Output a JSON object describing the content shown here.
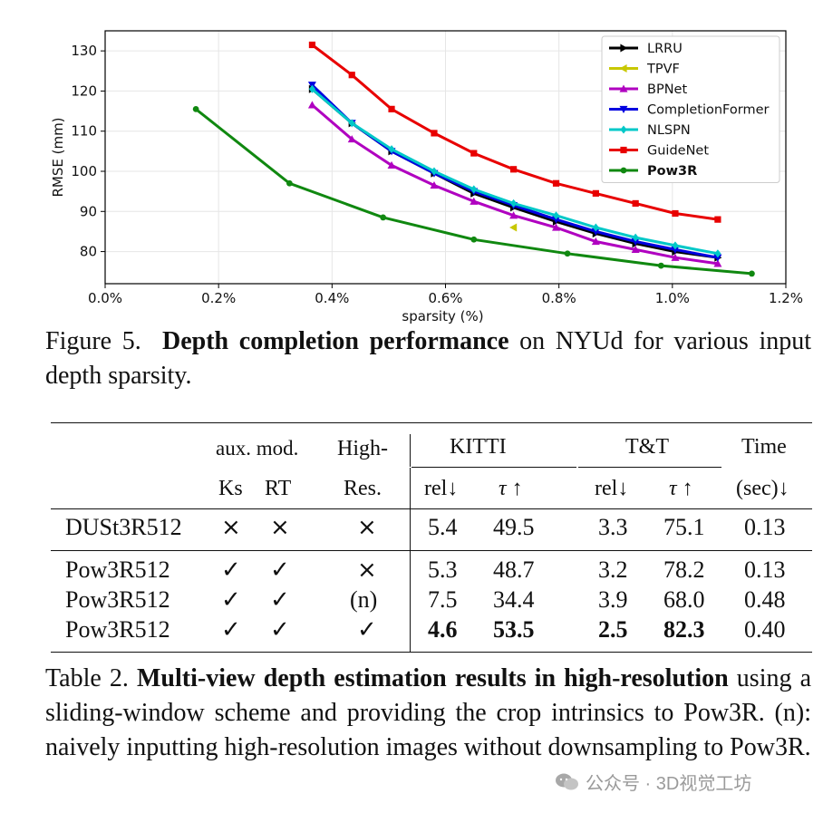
{
  "figure": {
    "caption_prefix": "Figure 5.",
    "caption_bold": "Depth completion performance",
    "caption_rest": " on NYUd for various input depth sparsity."
  },
  "chart_data": {
    "type": "line",
    "xlabel": "sparsity (%)",
    "ylabel": "RMSE (mm)",
    "xlim": [
      0.0,
      1.2
    ],
    "ylim": [
      72,
      135
    ],
    "xticks": [
      0.0,
      0.2,
      0.4,
      0.6,
      0.8,
      1.0,
      1.2
    ],
    "xtick_labels": [
      "0.0%",
      "0.2%",
      "0.4%",
      "0.6%",
      "0.8%",
      "1.0%",
      "1.2%"
    ],
    "yticks": [
      80,
      90,
      100,
      110,
      120,
      130
    ],
    "ytick_labels": [
      "80",
      "90",
      "100",
      "110",
      "120",
      "130"
    ],
    "grid": true,
    "legend_position": "top-right",
    "series": [
      {
        "name": "LRRU",
        "color": "#000000",
        "marker": "triangle-right",
        "bold": false,
        "x": [
          0.365,
          0.435,
          0.505,
          0.58,
          0.65,
          0.72,
          0.795,
          0.865,
          0.935,
          1.005,
          1.08
        ],
        "y": [
          120.5,
          112,
          105,
          99.5,
          94.5,
          91,
          87.5,
          84.5,
          82,
          80,
          78.5
        ]
      },
      {
        "name": "TPVF",
        "color": "#c8c800",
        "marker": "triangle-left",
        "bold": false,
        "x": [
          0.72
        ],
        "y": [
          86
        ]
      },
      {
        "name": "BPNet",
        "color": "#b000c0",
        "marker": "triangle-up",
        "bold": false,
        "x": [
          0.365,
          0.435,
          0.505,
          0.58,
          0.65,
          0.72,
          0.795,
          0.865,
          0.935,
          1.005,
          1.08
        ],
        "y": [
          116.5,
          108,
          101.5,
          96.5,
          92.5,
          89,
          86,
          82.5,
          80.5,
          78.5,
          77
        ]
      },
      {
        "name": "CompletionFormer",
        "color": "#0000e0",
        "marker": "triangle-down",
        "bold": false,
        "x": [
          0.365,
          0.435,
          0.505,
          0.58,
          0.65,
          0.72,
          0.795,
          0.865,
          0.935,
          1.005,
          1.08
        ],
        "y": [
          121.5,
          112,
          105,
          99.5,
          95,
          91.5,
          88,
          85,
          82.5,
          80.5,
          78.5
        ]
      },
      {
        "name": "NLSPN",
        "color": "#00c8c8",
        "marker": "diamond",
        "bold": false,
        "x": [
          0.365,
          0.435,
          0.505,
          0.58,
          0.65,
          0.72,
          0.795,
          0.865,
          0.935,
          1.005,
          1.08
        ],
        "y": [
          120.5,
          112,
          105.5,
          100,
          95.5,
          92,
          89,
          86,
          83.5,
          81.5,
          79.5
        ]
      },
      {
        "name": "GuideNet",
        "color": "#e80000",
        "marker": "square",
        "bold": false,
        "x": [
          0.365,
          0.435,
          0.505,
          0.58,
          0.65,
          0.72,
          0.795,
          0.865,
          0.935,
          1.005,
          1.08
        ],
        "y": [
          131.5,
          124,
          115.5,
          109.5,
          104.5,
          100.5,
          97,
          94.5,
          92,
          89.5,
          88
        ]
      },
      {
        "name": "Pow3R",
        "color": "#108810",
        "marker": "circle",
        "bold": true,
        "x": [
          0.16,
          0.325,
          0.49,
          0.65,
          0.815,
          0.98,
          1.14
        ],
        "y": [
          115.5,
          97,
          88.5,
          83,
          79.5,
          76.5,
          74.5
        ]
      }
    ]
  },
  "table": {
    "caption_prefix": "Table 2.",
    "caption_bold": "Multi-view depth estimation results in high-resolution",
    "caption_rest": " using a sliding-window scheme and providing the crop intrinsics to Pow3R. (n): naively inputting high-resolution images without downsampling to Pow3R.",
    "header_top": {
      "aux_mod": "aux. mod.",
      "high": "High-",
      "kitti": "KITTI",
      "tt": "T&T",
      "time": "Time"
    },
    "header_sub": {
      "ks": "Ks",
      "rt": "RT",
      "res": "Res.",
      "kitti_rel": "rel↓",
      "kitti_tau": "τ ↑",
      "tt_rel": "rel↓",
      "tt_tau": "τ ↑",
      "time": "(sec)↓"
    },
    "rows": [
      {
        "method": "DUSt3R512",
        "ks": "×",
        "rt": "×",
        "high": "×",
        "kitti_rel": "5.4",
        "kitti_tau": "49.5",
        "tt_rel": "3.3",
        "tt_tau": "75.1",
        "time": "0.13"
      },
      {
        "method": "Pow3R512",
        "ks": "✓",
        "rt": "✓",
        "high": "×",
        "kitti_rel": "5.3",
        "kitti_tau": "48.7",
        "tt_rel": "3.2",
        "tt_tau": "78.2",
        "time": "0.13"
      },
      {
        "method": "Pow3R512",
        "ks": "✓",
        "rt": "✓",
        "high": "(n)",
        "kitti_rel": "7.5",
        "kitti_tau": "34.4",
        "tt_rel": "3.9",
        "tt_tau": "68.0",
        "time": "0.48"
      },
      {
        "method": "Pow3R512",
        "ks": "✓",
        "rt": "✓",
        "high": "✓",
        "kitti_rel": "4.6",
        "kitti_tau": "53.5",
        "tt_rel": "2.5",
        "tt_tau": "82.3",
        "time": "0.40"
      }
    ]
  },
  "watermark": {
    "text": "公众号 · 3D视觉工坊",
    "icon": "wechat-icon"
  }
}
